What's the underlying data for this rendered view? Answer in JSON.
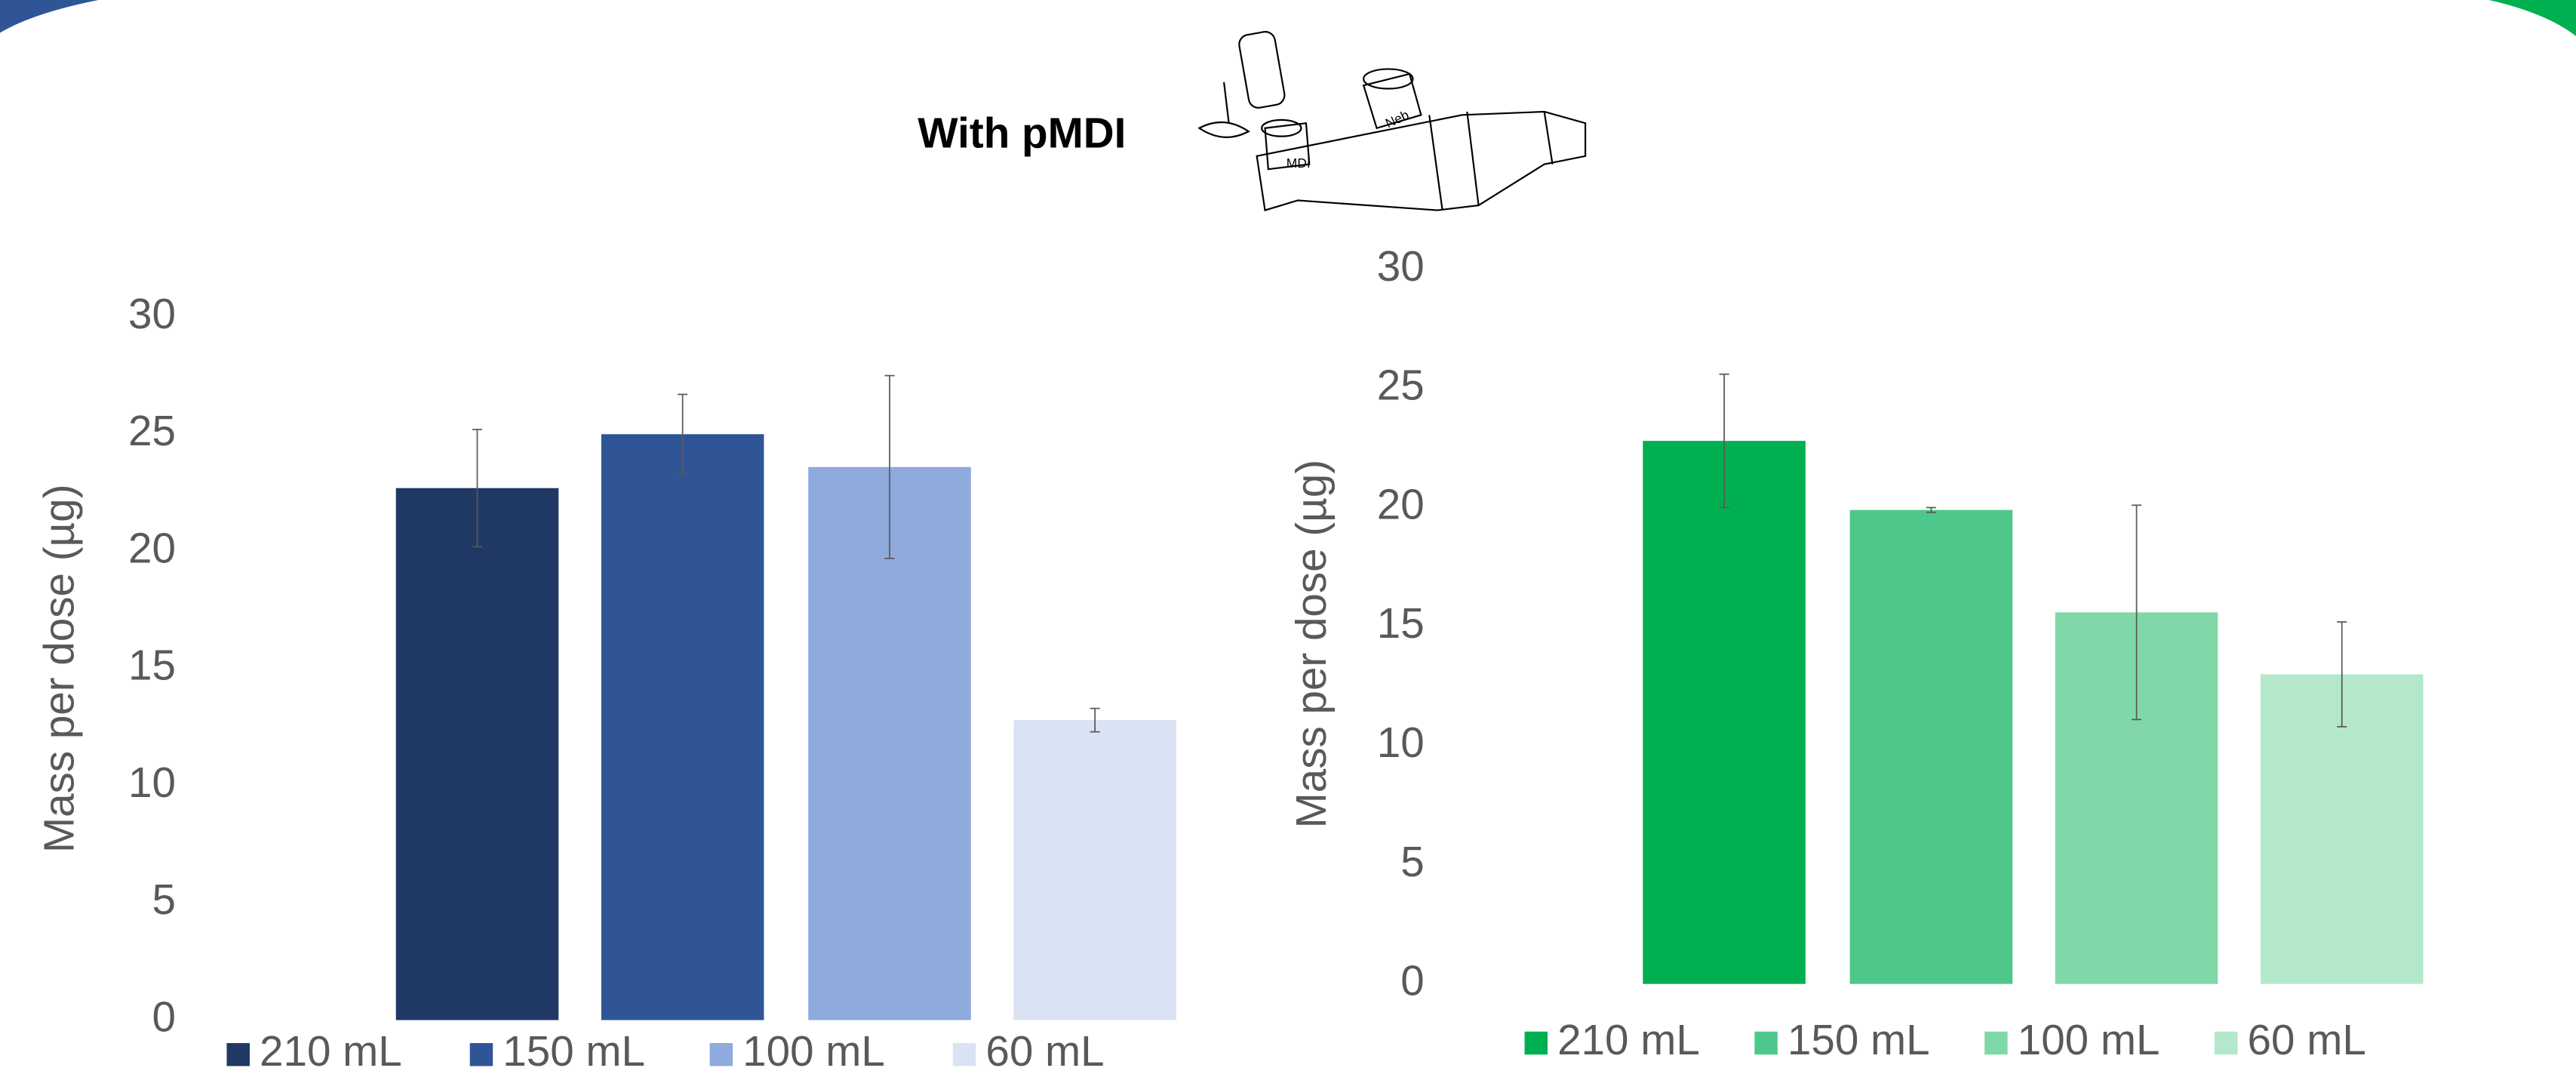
{
  "header": {
    "title": "With pMDI"
  },
  "chart_data": [
    {
      "type": "bar",
      "ylabel": "Mass per dose (µg)",
      "ylim": [
        0,
        30
      ],
      "yticks": [
        0,
        5,
        10,
        15,
        20,
        25,
        30
      ],
      "series": [
        {
          "name": "210 mL",
          "color": "#203864",
          "values": [
            22.7
          ],
          "errors": [
            2.5
          ]
        },
        {
          "name": "150 mL",
          "color": "#2f5597",
          "values": [
            25.0
          ],
          "errors": [
            1.7
          ]
        },
        {
          "name": "100 mL",
          "color": "#8faadc",
          "values": [
            23.6
          ],
          "errors": [
            3.9
          ]
        },
        {
          "name": "60 mL",
          "color": "#dae3f3",
          "values": [
            12.8
          ],
          "errors": [
            0.5
          ]
        }
      ]
    },
    {
      "type": "bar",
      "ylabel": "Mass per dose (µg)",
      "ylim": [
        0,
        30
      ],
      "yticks": [
        0,
        5,
        10,
        15,
        20,
        25,
        30
      ],
      "series": [
        {
          "name": "210 mL",
          "color": "#00b050",
          "values": [
            22.8
          ],
          "errors": [
            2.8
          ]
        },
        {
          "name": "150 mL",
          "color": "#4dc88a",
          "values": [
            19.9
          ],
          "errors": [
            0.1
          ]
        },
        {
          "name": "100 mL",
          "color": "#80d8a8",
          "values": [
            15.6
          ],
          "errors": [
            4.5
          ]
        },
        {
          "name": "60 mL",
          "color": "#b3e8cb",
          "values": [
            13.0
          ],
          "errors": [
            2.2
          ]
        }
      ]
    }
  ]
}
